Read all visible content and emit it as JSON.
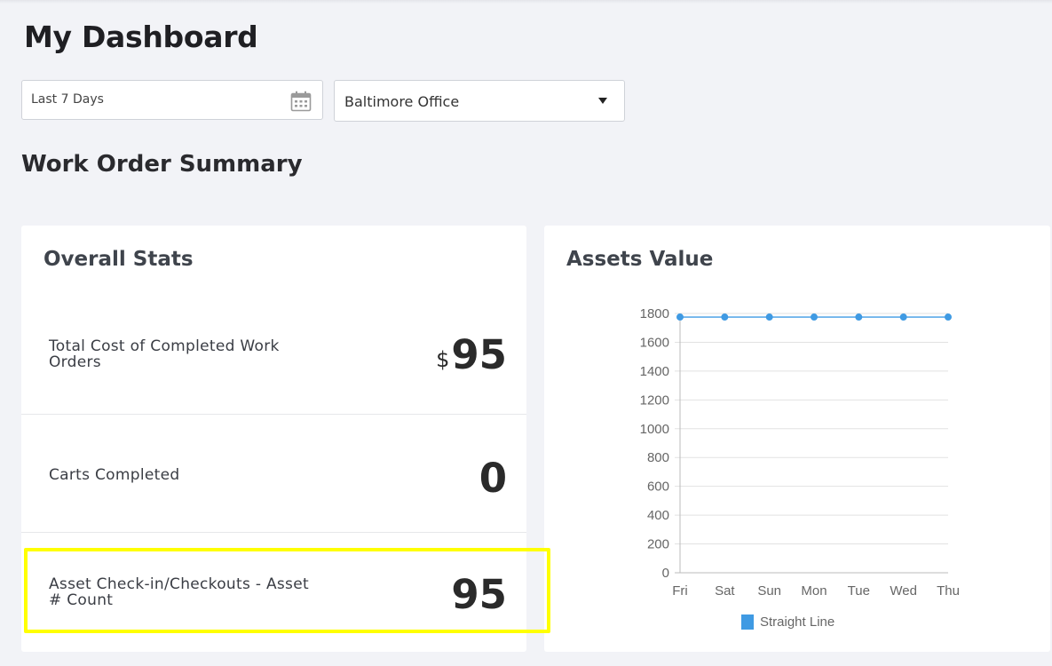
{
  "page": {
    "title": "My Dashboard",
    "section_title": "Work Order Summary"
  },
  "filters": {
    "date_range": "Last 7 Days",
    "office": "Baltimore Office",
    "date_icon": "calendar-icon",
    "office_icon": "chevron-down-icon"
  },
  "stats": {
    "title": "Overall Stats",
    "rows": [
      {
        "label": "Total Cost of Completed Work Orders",
        "prefix": "$",
        "value": "95"
      },
      {
        "label": "Carts Completed",
        "prefix": "",
        "value": "0"
      },
      {
        "label": "Asset Check-in/Checkouts - Asset # Count",
        "prefix": "",
        "value": "95"
      }
    ],
    "highlight_color": "#ffff00"
  },
  "assets": {
    "title": "Assets Value"
  },
  "chart_data": {
    "type": "line",
    "categories": [
      "Fri",
      "Sat",
      "Sun",
      "Mon",
      "Tue",
      "Wed",
      "Thu"
    ],
    "y_ticks": [
      "0",
      "200",
      "400",
      "600",
      "800",
      "1000",
      "1200",
      "1400",
      "1600",
      "1800"
    ],
    "ylim": [
      0,
      1800
    ],
    "grid": true,
    "legend_position": "bottom",
    "series": [
      {
        "name": "Straight Line",
        "color": "#3f9ae3",
        "values": [
          1775,
          1775,
          1775,
          1775,
          1775,
          1775,
          1775
        ]
      }
    ]
  }
}
